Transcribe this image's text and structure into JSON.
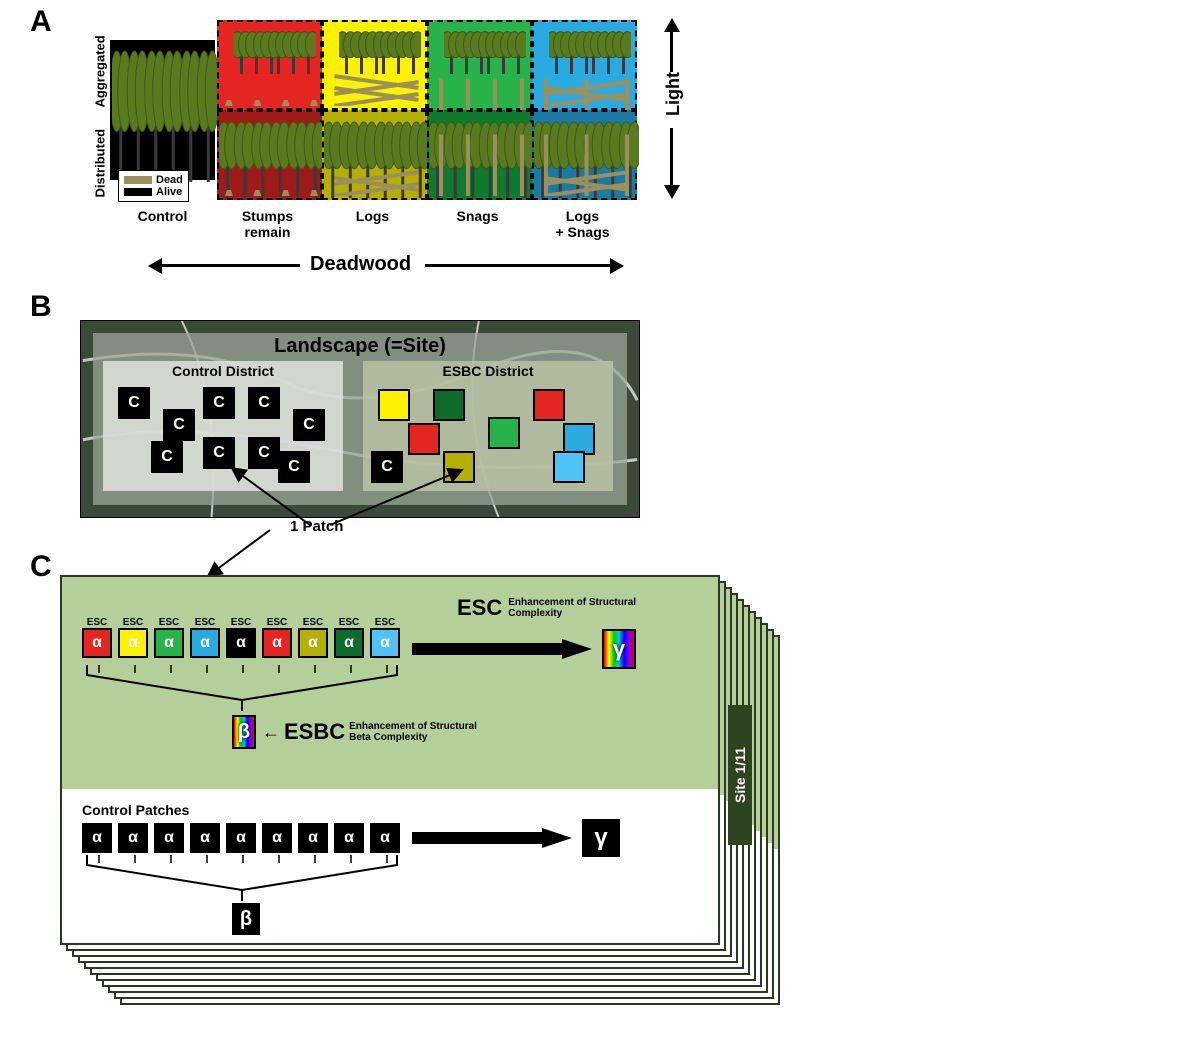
{
  "panelA": {
    "letter": "A",
    "rows": [
      "Aggregated",
      "Distributed"
    ],
    "columns": [
      {
        "label": "Control",
        "bg": "#000000"
      },
      {
        "label": "Stumps\nremain",
        "bg_top": "#e52521",
        "bg_bot": "#a01a18"
      },
      {
        "label": "Logs",
        "bg_top": "#fef200",
        "bg_bot": "#b5af00"
      },
      {
        "label": "Snags",
        "bg_top": "#27b24a",
        "bg_bot": "#0d7a2d"
      },
      {
        "label": "Logs\n+ Snags",
        "bg_top": "#29abe2",
        "bg_bot": "#1b7aa3"
      }
    ],
    "deadwood_axis": "Deadwood",
    "light_axis": "Light",
    "legend": {
      "dead": {
        "color": "#9b8f5a",
        "label": "Dead"
      },
      "alive": {
        "color": "#000000",
        "label": "Alive"
      }
    },
    "tree": {
      "leaf": "#5a7a1f",
      "leaf_dark": "#3e5a14",
      "trunk": "#3a3a3a"
    },
    "dead_color": "#9b8f5a"
  },
  "panelB": {
    "letter": "B",
    "landscape_label": "Landscape (=Site)",
    "control_label": "Control District",
    "esbc_label": "ESBC District",
    "patch_label": "1 Patch",
    "bg": "#3a4a38",
    "overlay": "#9aa698",
    "control_bg": "#cfd4cd",
    "esbc_bg": "#b7c2a5",
    "patches_control": "#000000",
    "patches_esbc": [
      "#fef200",
      "#0d6b2b",
      "#e52521",
      "#e52521",
      "#27b24a",
      "#29abe2",
      "#000000",
      "#b5af00",
      "#4fc3f7"
    ]
  },
  "panelC": {
    "letter": "C",
    "esc_small": "ESC",
    "esc_title": "ESC",
    "esc_sub": "Enhancement of Structural\nComplexity",
    "esbc_title": "ESBC",
    "esbc_sub": "Enhancement of Structural\nBeta Complexity",
    "control_patches_label": "Control Patches",
    "site_label": "Site 1/11",
    "alpha": "α",
    "beta": "β",
    "gamma": "γ",
    "esc_colors": [
      "#e52521",
      "#fef200",
      "#27b24a",
      "#29abe2",
      "#000000",
      "#e52521",
      "#b5af00",
      "#0d6b2b",
      "#4fc3f7"
    ],
    "stack_fill": "#b5cf9a",
    "stack_border": "#2a3a1f"
  }
}
